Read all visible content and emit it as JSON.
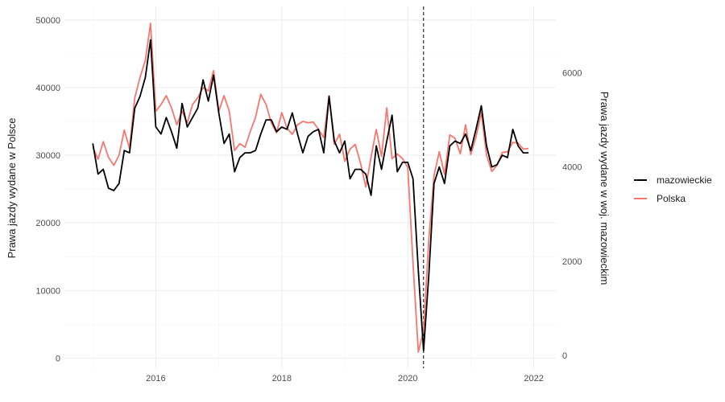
{
  "chart_data": {
    "type": "line",
    "title": "",
    "ylabel": "Prawa jazdy wydane w Polsce",
    "ylabel_right": "Prawa jazdy wydane w woj. mazowieckim",
    "xlabel": "",
    "x_ticks": [
      "2016",
      "2018",
      "2020",
      "2022"
    ],
    "y_ticks_left": [
      "0",
      "10000",
      "20000",
      "30000",
      "40000",
      "50000"
    ],
    "y_ticks_right": [
      "0",
      "2000",
      "4000",
      "6000"
    ],
    "ylim_left": [
      -1500,
      52000
    ],
    "ylim_right": [
      0,
      7000
    ],
    "xlim": [
      2014.55,
      2022.35
    ],
    "vline_x": 2020.25,
    "grid": true,
    "legend_position": "right",
    "colors": {
      "mazowieckie": "#000000",
      "Polska": "#f8766d"
    },
    "x": [
      "2015-01",
      "2015-02",
      "2015-03",
      "2015-04",
      "2015-05",
      "2015-06",
      "2015-07",
      "2015-08",
      "2015-09",
      "2015-10",
      "2015-11",
      "2015-12",
      "2016-01",
      "2016-02",
      "2016-03",
      "2016-04",
      "2016-05",
      "2016-06",
      "2016-07",
      "2016-08",
      "2016-09",
      "2016-10",
      "2016-11",
      "2016-12",
      "2017-01",
      "2017-02",
      "2017-03",
      "2017-04",
      "2017-05",
      "2017-06",
      "2017-07",
      "2017-08",
      "2017-09",
      "2017-10",
      "2017-11",
      "2017-12",
      "2018-01",
      "2018-02",
      "2018-03",
      "2018-04",
      "2018-05",
      "2018-06",
      "2018-07",
      "2018-08",
      "2018-09",
      "2018-10",
      "2018-11",
      "2018-12",
      "2019-01",
      "2019-02",
      "2019-03",
      "2019-04",
      "2019-05",
      "2019-06",
      "2019-07",
      "2019-08",
      "2019-09",
      "2019-10",
      "2019-11",
      "2019-12",
      "2020-01",
      "2020-02",
      "2020-03",
      "2020-04",
      "2020-05",
      "2020-06",
      "2020-07",
      "2020-08",
      "2020-09",
      "2020-10",
      "2020-11",
      "2020-12",
      "2021-01",
      "2021-02",
      "2021-03",
      "2021-04",
      "2021-05",
      "2021-06",
      "2021-07",
      "2021-08",
      "2021-09",
      "2021-10",
      "2021-11",
      "2021-12"
    ],
    "series": [
      {
        "name": "mazowieckie",
        "axis": "right",
        "values": [
          4500,
          3850,
          3950,
          3550,
          3500,
          3650,
          4350,
          4300,
          5250,
          5500,
          5900,
          6700,
          4850,
          4700,
          5050,
          4750,
          4400,
          5350,
          4850,
          5050,
          5250,
          5850,
          5400,
          5950,
          5150,
          4500,
          4700,
          3900,
          4200,
          4300,
          4300,
          4350,
          4700,
          5000,
          5000,
          4750,
          4850,
          4800,
          5150,
          4700,
          4300,
          4650,
          4750,
          4800,
          4300,
          5500,
          4550,
          4300,
          4550,
          3750,
          3950,
          3950,
          3850,
          3400,
          4450,
          3950,
          4550,
          5100,
          3900,
          4100,
          4100,
          3750,
          1800,
          100,
          1700,
          3650,
          4000,
          3650,
          4450,
          4550,
          4500,
          4700,
          4350,
          4800,
          5300,
          4450,
          4000,
          4050,
          4250,
          4200,
          4800,
          4450,
          4300,
          4300
        ]
      },
      {
        "name": "Polska",
        "values": [
          31200,
          29400,
          32000,
          29700,
          28500,
          30000,
          33700,
          31000,
          38500,
          41500,
          44000,
          49500,
          36500,
          37500,
          38800,
          37000,
          34500,
          36500,
          34800,
          37500,
          38500,
          40000,
          39500,
          42500,
          36500,
          38800,
          36500,
          30700,
          31700,
          31200,
          33500,
          35600,
          39000,
          37500,
          34800,
          33300,
          36300,
          34000,
          33100,
          34500,
          35000,
          34800,
          34900,
          33800,
          32600,
          38800,
          31600,
          33100,
          29100,
          30900,
          31600,
          28800,
          25300,
          29700,
          33800,
          29800,
          37000,
          29500,
          30200,
          29500,
          28200,
          14000,
          900,
          4000,
          17500,
          27000,
          30500,
          27200,
          33000,
          32500,
          30200,
          34500,
          30100,
          32700,
          36300,
          30000,
          27600,
          28500,
          30400,
          30500,
          31900,
          31800,
          30900,
          31000
        ]
      }
    ]
  }
}
